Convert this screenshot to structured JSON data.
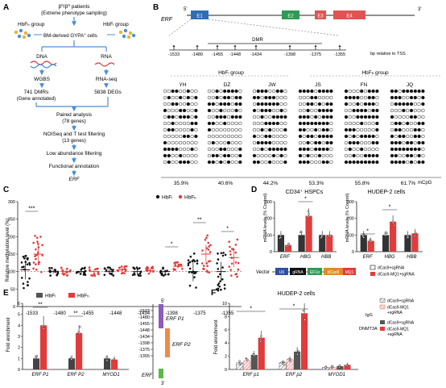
{
  "panels": {
    "A": {
      "letter": "A",
      "top_line1": "β⁰/β⁰ patients",
      "top_line2": "(Extreme phenotype sampling)",
      "hbfh_group": "HbFₕ group",
      "hbfl_group": "HbFₗ group",
      "bm_line1": "BM-derived GYPA",
      "bm_sup": "+",
      "bm_line2": " cells",
      "dna": "DNA",
      "rna": "RNA",
      "wgbs": "WGBS",
      "rnaseq": "RNA-seq",
      "dmrs_line1": "741 DMRs",
      "dmrs_line2": "(Gene annotated)",
      "degs": "5838 DEGs",
      "paired_line1": "Paired analysis",
      "paired_line2": "(78 genes)",
      "noiseq_line1": "NOISeq and T test filtering",
      "noiseq_line2": "(13 genes)",
      "low_abundance": "Low abundance filtering",
      "functional": "Functional annotation",
      "erf": "ERF"
    },
    "B": {
      "letter": "B",
      "gene": "ERF",
      "five_prime": "5'",
      "three_prime": "3'",
      "exons": [
        "E1",
        "E2",
        "E3",
        "E4"
      ],
      "dmr_label": "DMR",
      "positions": [
        "-1533",
        "-1480",
        "-1455",
        "-1448",
        "-1434",
        "-1398",
        "-1375",
        "-1355"
      ],
      "bp_label": "bp relative to TSS",
      "hbfl_header": "HbFₗ group",
      "hbfh_header": "HbFₕ group",
      "samples": [
        {
          "id": "YH",
          "pct": "35.9%"
        },
        {
          "id": "DZ",
          "pct": "40.6%"
        },
        {
          "id": "JW",
          "pct": "44.2%"
        },
        {
          "id": "JS",
          "pct": "53.3%"
        },
        {
          "id": "FN",
          "pct": "55.8%"
        },
        {
          "id": "JQ",
          "pct": "61.7%"
        }
      ],
      "mcpg_label": "mCpG"
    },
    "C": {
      "letter": "C",
      "ylabel": "Relative methylation level (%)",
      "yticks": [
        "0",
        "50",
        "100",
        "150",
        "200",
        "250",
        "300"
      ],
      "legend": [
        "HbFₗ",
        "HbFₕ"
      ],
      "categories": [
        "-1533",
        "-1480",
        "-1455",
        "-1448",
        "-1434",
        "-1398",
        "-1375",
        "-1355"
      ],
      "sig": [
        "***",
        "",
        "",
        "",
        "",
        "*",
        "**",
        "*"
      ]
    },
    "D": {
      "letter": "D",
      "title_left": "CD34⁺ HSPCs",
      "title_right": "HUDEP-2 cells",
      "ylabel": "mRNA levels (% Control)",
      "yticks_left": [
        "0",
        "100",
        "200",
        "300"
      ],
      "yticks_right": [
        "0",
        "100",
        "200",
        "300"
      ],
      "genes": [
        "ERF",
        "HBG",
        "HBB"
      ],
      "sig_left": [
        "",
        "*",
        ""
      ],
      "sig_right": [
        "*",
        "*",
        ""
      ],
      "vector_label": "Vector",
      "vector_parts": [
        "U6",
        "gRNA",
        "EF1α",
        "dCas9",
        "MQ1"
      ],
      "legend": [
        "dCas9+sgRNA",
        "dCas9-MQ1+sgRNA"
      ]
    },
    "E": {
      "letter": "E",
      "ylabel": "Fold enrichment",
      "yticks": [
        "0",
        "1",
        "2",
        "3",
        "4",
        "5",
        "6"
      ],
      "legend": [
        "HbFₗ",
        "HbFₕ"
      ],
      "categories": [
        "ERF P1",
        "ERF P2",
        "MYOD1"
      ],
      "sig": [
        "**",
        "**",
        ""
      ],
      "map_positions": [
        "-1533",
        "-1480",
        "-1455",
        "-1448",
        "-1434",
        "-1398",
        "-1375",
        "-1355"
      ],
      "five_prime": "5'",
      "three_prime": "3'",
      "p1_label": "ERF P1",
      "p2_label": "ERF P2",
      "erf_label": "ERF"
    },
    "F": {
      "letter": "F",
      "title": "HUDEP-2 cells",
      "ylabel": "Fold enrichment",
      "yticks": [
        "0",
        "2",
        "4",
        "6",
        "8",
        "10"
      ],
      "categories": [
        "ERF p1",
        "ERF p2",
        "MYOD1"
      ],
      "sig": [
        "*",
        "*",
        ""
      ],
      "igg_label": "IgG",
      "dnmt_label": "DNMT3A",
      "legend_igg": [
        "dCas9+sgRNA",
        "dCas9-MQ1",
        "+sgRNA"
      ],
      "legend_dnmt": [
        "dCas9+sgRNA",
        "dCas9-MQ1",
        "+sgRNA"
      ]
    }
  },
  "chart_data": [
    {
      "panel": "C",
      "type": "scatter",
      "categories": [
        "-1533",
        "-1480",
        "-1455",
        "-1448",
        "-1434",
        "-1398",
        "-1375",
        "-1355"
      ],
      "series": [
        {
          "name": "HbFₗ",
          "means": [
            105,
            100,
            100,
            100,
            100,
            100,
            100,
            100
          ]
        },
        {
          "name": "HbFₕ",
          "means": [
            150,
            100,
            100,
            105,
            103,
            115,
            150,
            140
          ]
        }
      ],
      "ylim": [
        0,
        300
      ]
    },
    {
      "panel": "D",
      "type": "bar",
      "subcharts": [
        {
          "title": "CD34⁺ HSPCs",
          "categories": [
            "ERF",
            "HBG",
            "HBB"
          ],
          "series": [
            {
              "name": "dCas9+sgRNA",
              "values": [
                100,
                100,
                100
              ]
            },
            {
              "name": "dCas9-MQ1+sgRNA",
              "values": [
                40,
                215,
                100
              ]
            }
          ]
        },
        {
          "title": "HUDEP-2 cells",
          "categories": [
            "ERF",
            "HBG",
            "HBB"
          ],
          "series": [
            {
              "name": "dCas9+sgRNA",
              "values": [
                100,
                100,
                100
              ]
            },
            {
              "name": "dCas9-MQ1+sgRNA",
              "values": [
                65,
                180,
                110
              ]
            }
          ]
        }
      ],
      "ylim": [
        0,
        300
      ]
    },
    {
      "panel": "E",
      "type": "bar",
      "categories": [
        "ERF P1",
        "ERF P2",
        "MYOD1"
      ],
      "series": [
        {
          "name": "HbFₗ",
          "values": [
            1.0,
            1.0,
            1.0
          ]
        },
        {
          "name": "HbFₕ",
          "values": [
            4.0,
            3.3,
            0.9
          ]
        }
      ],
      "ylim": [
        0,
        6
      ]
    },
    {
      "panel": "F",
      "type": "bar",
      "categories": [
        "ERF p1",
        "ERF p2",
        "MYOD1"
      ],
      "series": [
        {
          "name": "IgG dCas9+sgRNA",
          "values": [
            1.0,
            1.0,
            0.3
          ]
        },
        {
          "name": "IgG dCas9-MQ1+sgRNA",
          "values": [
            1.3,
            1.5,
            0.3
          ]
        },
        {
          "name": "DNMT3A dCas9+sgRNA",
          "values": [
            2.2,
            2.7,
            0.5
          ]
        },
        {
          "name": "DNMT3A dCas9-MQ1+sgRNA",
          "values": [
            4.8,
            8.5,
            0.7
          ]
        }
      ],
      "ylim": [
        0,
        10
      ]
    }
  ],
  "colors": {
    "red": "#e23b3b",
    "black": "#111111",
    "blue": "#3a8dd8",
    "arrow_blue": "#4a8fd6",
    "exon_blue": "#2f6eb5",
    "exon_green": "#2e9b57",
    "exon_red": "#e05454",
    "purple": "#8e5bb8",
    "orange": "#f08a4b",
    "green": "#5cb84a",
    "gray": "#888888",
    "lightpink": "#f2b7b7",
    "axis": "#222222"
  }
}
